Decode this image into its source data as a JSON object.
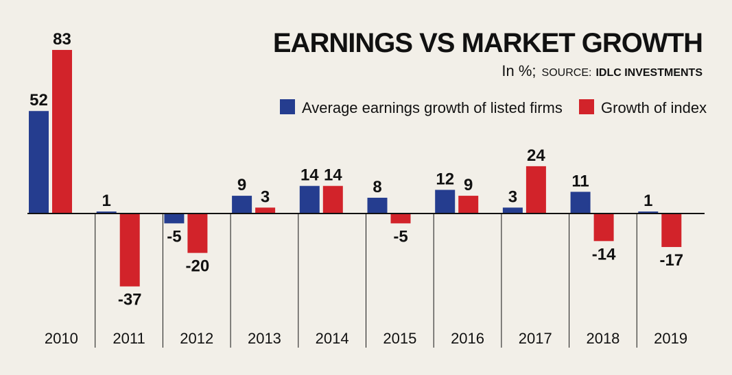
{
  "chart_data": {
    "type": "bar",
    "title": "EARNINGS VS MARKET GROWTH",
    "subtitle": "In %;",
    "source_label": "SOURCE:",
    "source_name": "IDLC INVESTMENTS",
    "categories": [
      "2010",
      "2011",
      "2012",
      "2013",
      "2014",
      "2015",
      "2016",
      "2017",
      "2018",
      "2019"
    ],
    "series": [
      {
        "name": "Average earnings growth of listed firms",
        "color": "#253d8f",
        "values": [
          52,
          1,
          -5,
          9,
          14,
          8,
          12,
          3,
          11,
          1
        ]
      },
      {
        "name": "Growth of index",
        "color": "#d2232a",
        "values": [
          83,
          -37,
          -20,
          3,
          14,
          -5,
          9,
          24,
          -14,
          -17
        ]
      }
    ],
    "ylim": [
      -37,
      83
    ],
    "xlabel": "",
    "ylabel": "",
    "legend_position": "top-right",
    "grid": false
  }
}
